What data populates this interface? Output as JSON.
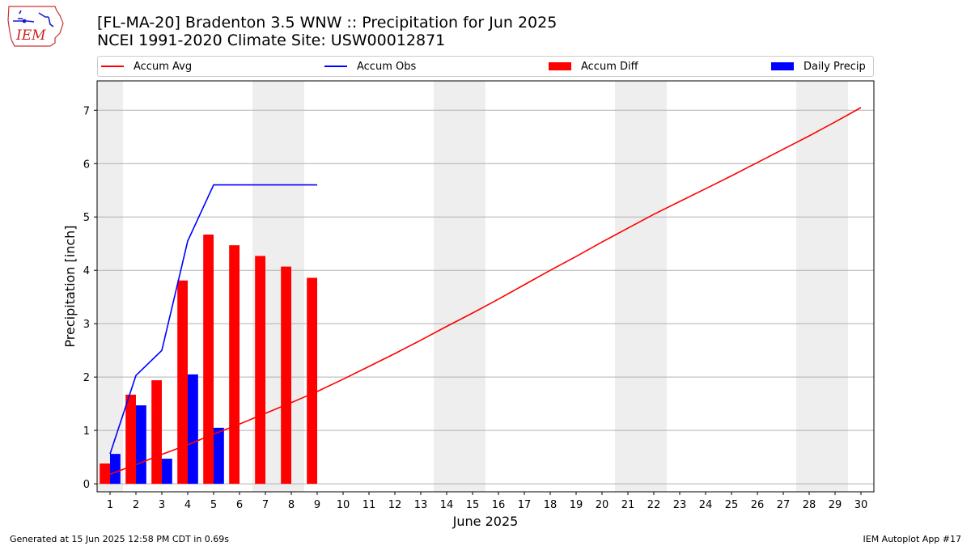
{
  "header": {
    "title_line1": "[FL-MA-20] Bradenton 3.5 WNW :: Precipitation for Jun 2025",
    "title_line2": "NCEI 1991-2020 Climate Site: USW00012871",
    "logo_text": "IEM"
  },
  "legend": {
    "items": [
      {
        "label": "Accum Avg",
        "color": "#ff0000",
        "kind": "line"
      },
      {
        "label": "Accum Obs",
        "color": "#0000ff",
        "kind": "line"
      },
      {
        "label": "Accum Diff",
        "color": "#ff0000",
        "kind": "bar"
      },
      {
        "label": "Daily Precip",
        "color": "#0000ff",
        "kind": "bar"
      }
    ]
  },
  "footer": {
    "left": "Generated at 15 Jun 2025 12:58 PM CDT in 0.69s",
    "right": "IEM Autoplot App #17"
  },
  "chart_data": {
    "type": "bar",
    "xlabel": "June 2025",
    "ylabel": "Precipitation [inch]",
    "ylim": [
      -0.15,
      7.55
    ],
    "xlim": [
      0.5,
      30.5
    ],
    "yticks": [
      0,
      1,
      2,
      3,
      4,
      5,
      6,
      7
    ],
    "days": [
      1,
      2,
      3,
      4,
      5,
      6,
      7,
      8,
      9,
      10,
      11,
      12,
      13,
      14,
      15,
      16,
      17,
      18,
      19,
      20,
      21,
      22,
      23,
      24,
      25,
      26,
      27,
      28,
      29,
      30
    ],
    "weekend_days": [
      1,
      7,
      8,
      14,
      15,
      21,
      22,
      28,
      29
    ],
    "grid": "horizontal",
    "series": [
      {
        "name": "Accum Avg",
        "type": "line",
        "color": "#ff0000",
        "x": [
          1,
          2,
          3,
          4,
          5,
          6,
          7,
          8,
          9,
          10,
          11,
          12,
          13,
          14,
          15,
          16,
          17,
          18,
          19,
          20,
          21,
          22,
          23,
          24,
          25,
          26,
          27,
          28,
          29,
          30
        ],
        "values": [
          0.18,
          0.36,
          0.55,
          0.73,
          0.93,
          1.12,
          1.32,
          1.52,
          1.73,
          1.96,
          2.2,
          2.44,
          2.69,
          2.95,
          3.2,
          3.46,
          3.73,
          4.0,
          4.26,
          4.53,
          4.79,
          5.05,
          5.29,
          5.53,
          5.77,
          6.02,
          6.27,
          6.52,
          6.78,
          7.05
        ]
      },
      {
        "name": "Accum Obs",
        "type": "line",
        "color": "#0000ff",
        "x": [
          1,
          2,
          3,
          4,
          5,
          6,
          7,
          8,
          9
        ],
        "values": [
          0.56,
          2.03,
          2.5,
          4.55,
          5.6,
          5.6,
          5.6,
          5.6,
          5.6
        ]
      },
      {
        "name": "Accum Diff",
        "type": "bar",
        "color": "#ff0000",
        "x": [
          1,
          2,
          3,
          4,
          5,
          6,
          7,
          8,
          9
        ],
        "values": [
          0.38,
          1.67,
          1.94,
          3.81,
          4.67,
          4.47,
          4.27,
          4.07,
          3.86
        ]
      },
      {
        "name": "Daily Precip",
        "type": "bar",
        "color": "#0000ff",
        "x": [
          1,
          2,
          3,
          4,
          5,
          6,
          7,
          8,
          9
        ],
        "values": [
          0.56,
          1.47,
          0.47,
          2.05,
          1.05,
          0,
          0,
          0,
          0
        ]
      }
    ]
  }
}
